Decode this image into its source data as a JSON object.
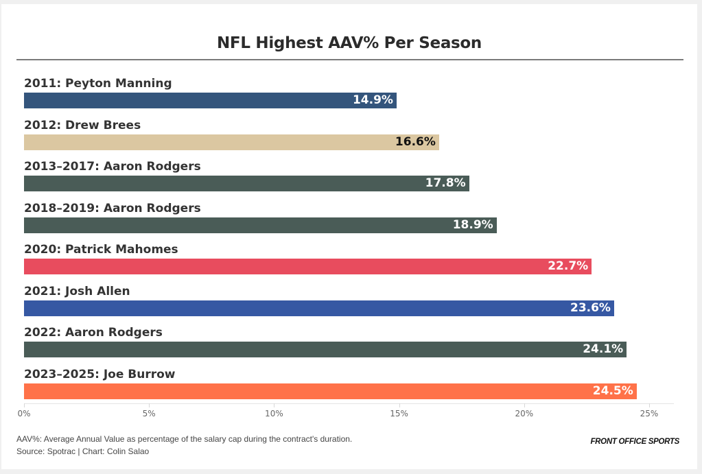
{
  "chart_data": {
    "type": "bar",
    "orientation": "horizontal",
    "title": "NFL Highest AAV% Per Season",
    "xlabel": "",
    "ylabel": "",
    "xlim": [
      0,
      26
    ],
    "x_ticks": [
      0,
      5,
      10,
      15,
      20,
      25
    ],
    "x_tick_labels": [
      "0%",
      "5%",
      "10%",
      "15%",
      "20%",
      "25%"
    ],
    "grid": false,
    "categories": [
      "2011: Peyton Manning",
      "2012: Drew Brees",
      "2013–2017: Aaron Rodgers",
      "2018–2019: Aaron Rodgers",
      "2020: Patrick Mahomes",
      "2021: Josh Allen",
      "2022: Aaron Rodgers",
      "2023–2025: Joe Burrow"
    ],
    "values": [
      14.9,
      16.6,
      17.8,
      18.9,
      22.7,
      23.6,
      24.1,
      24.5
    ],
    "value_labels": [
      "14.9%",
      "16.6%",
      "17.8%",
      "18.9%",
      "22.7%",
      "23.6%",
      "24.1%",
      "24.5%"
    ],
    "bar_colors": [
      "#34557c",
      "#dbc7a1",
      "#4a5c57",
      "#4a5c57",
      "#e84c5e",
      "#3658a3",
      "#4a5c57",
      "#ff7249"
    ],
    "label_colors": [
      "#ffffff",
      "#111111",
      "#ffffff",
      "#ffffff",
      "#ffffff",
      "#ffffff",
      "#ffffff",
      "#ffffff"
    ]
  },
  "footer": {
    "note": "AAV%: Average Annual Value as percentage of the salary cap during the contract's duration.",
    "source": "Source: Spotrac | Chart: Colin Salao",
    "brand": "FRONT OFFICE SPORTS"
  }
}
